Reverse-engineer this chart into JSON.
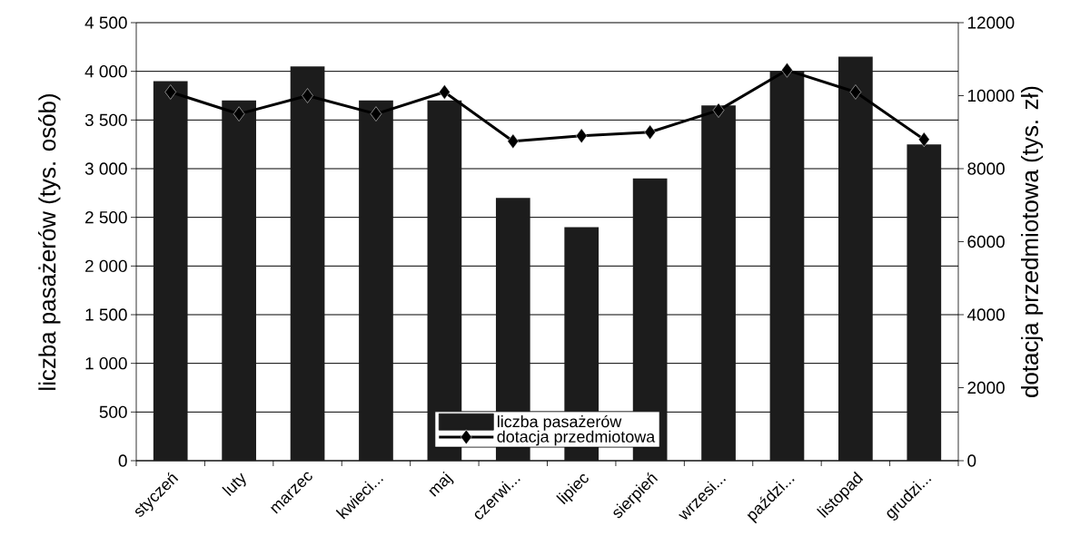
{
  "chart_data": {
    "type": "bar",
    "categories": [
      "styczeń",
      "luty",
      "marzec",
      "kwieci...",
      "maj",
      "czerwi...",
      "lipiec",
      "sierpień",
      "wrzesi...",
      "paździ...",
      "listopad",
      "grudzi..."
    ],
    "ylabel": "liczba pasażerów (tys. osób)",
    "y2label": "dotacja przedmiotowa (tys. zł)",
    "ylim": [
      0,
      4500
    ],
    "yticks": [
      0,
      500,
      {
        "value": 1000,
        "label": "1 000"
      },
      {
        "value": 1500,
        "label": "1 500"
      },
      {
        "value": 2000,
        "label": "2 000"
      },
      {
        "value": 2500,
        "label": "2 500"
      },
      {
        "value": 3000,
        "label": "3 000"
      },
      {
        "value": 3500,
        "label": "3 500"
      },
      {
        "value": 4000,
        "label": "4 000"
      },
      {
        "value": 4500,
        "label": "4 500"
      }
    ],
    "y2lim": [
      0,
      12000
    ],
    "y2ticks": [
      0,
      2000,
      4000,
      6000,
      8000,
      10000,
      12000
    ],
    "grid": "y",
    "legend": "bottom",
    "series": [
      {
        "name": "liczba pasażerów",
        "color": "#1c1c1c",
        "values": [
          3900,
          3700,
          4050,
          3700,
          3700,
          2700,
          2400,
          2900,
          3650,
          4000,
          4150,
          3250
        ]
      },
      {
        "name": "dotacja przedmiotowa",
        "type": "line",
        "axis": "y2",
        "marker": "diamond",
        "line_style": "solid",
        "color": "#000000",
        "values": [
          10100,
          9500,
          10000,
          9500,
          10100,
          8750,
          8900,
          9000,
          9600,
          10700,
          10100,
          8800
        ]
      }
    ]
  }
}
